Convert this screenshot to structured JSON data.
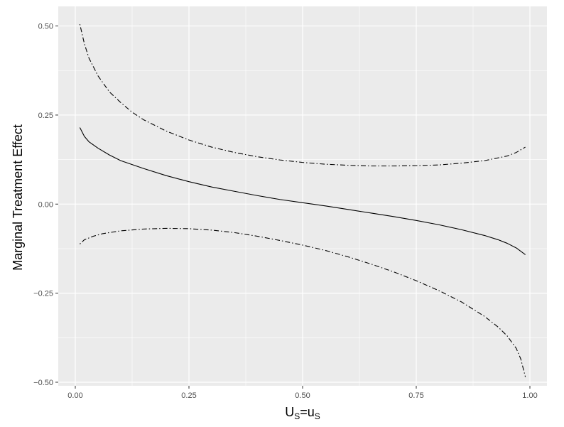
{
  "chart_data": {
    "type": "line",
    "title": "",
    "xlabel": "U_S=u_S",
    "xlabel_parts": {
      "main": "U",
      "sub": "S",
      "eq": "=u",
      "sub2": "S"
    },
    "ylabel": "Marginal Treatment Effect",
    "xlim": [
      -0.0375,
      1.0375
    ],
    "ylim": [
      -0.51,
      0.555
    ],
    "x_ticks": [
      0.0,
      0.25,
      0.5,
      0.75,
      1.0
    ],
    "x_tick_labels": [
      "0.00",
      "0.25",
      "0.50",
      "0.75",
      "1.00"
    ],
    "y_ticks": [
      -0.5,
      -0.25,
      0.0,
      0.25,
      0.5
    ],
    "y_tick_labels": [
      "−0.50",
      "−0.25",
      "0.00",
      "0.25",
      "0.50"
    ],
    "grid": true,
    "legend": "none",
    "background_color": "#ebebeb",
    "grid_color": "#ffffff",
    "series": [
      {
        "line_style": "solid",
        "x": [
          0.01,
          0.02,
          0.03,
          0.05,
          0.075,
          0.1,
          0.15,
          0.2,
          0.25,
          0.3,
          0.35,
          0.4,
          0.45,
          0.5,
          0.55,
          0.6,
          0.65,
          0.7,
          0.75,
          0.8,
          0.85,
          0.9,
          0.93,
          0.95,
          0.97,
          0.99
        ],
        "y": [
          0.215,
          0.19,
          0.175,
          0.157,
          0.138,
          0.122,
          0.1,
          0.08,
          0.063,
          0.048,
          0.036,
          0.024,
          0.013,
          0.004,
          -0.005,
          -0.015,
          -0.025,
          -0.035,
          -0.046,
          -0.058,
          -0.072,
          -0.088,
          -0.1,
          -0.11,
          -0.123,
          -0.142
        ]
      },
      {
        "line_style": "dotdash",
        "x": [
          0.01,
          0.02,
          0.03,
          0.05,
          0.075,
          0.1,
          0.125,
          0.15,
          0.2,
          0.25,
          0.3,
          0.35,
          0.4,
          0.45,
          0.5,
          0.55,
          0.6,
          0.65,
          0.7,
          0.75,
          0.8,
          0.85,
          0.9,
          0.95,
          0.97,
          0.99
        ],
        "y": [
          0.505,
          0.45,
          0.41,
          0.36,
          0.315,
          0.285,
          0.258,
          0.237,
          0.205,
          0.18,
          0.16,
          0.145,
          0.133,
          0.124,
          0.117,
          0.112,
          0.109,
          0.107,
          0.107,
          0.108,
          0.11,
          0.115,
          0.122,
          0.135,
          0.145,
          0.16
        ]
      },
      {
        "line_style": "dotdash",
        "x": [
          0.01,
          0.02,
          0.04,
          0.06,
          0.1,
          0.15,
          0.2,
          0.25,
          0.3,
          0.35,
          0.4,
          0.45,
          0.5,
          0.55,
          0.6,
          0.65,
          0.7,
          0.75,
          0.8,
          0.85,
          0.9,
          0.93,
          0.95,
          0.97,
          0.98,
          0.99
        ],
        "y": [
          -0.112,
          -0.1,
          -0.09,
          -0.083,
          -0.075,
          -0.07,
          -0.068,
          -0.069,
          -0.073,
          -0.08,
          -0.09,
          -0.102,
          -0.115,
          -0.13,
          -0.148,
          -0.168,
          -0.19,
          -0.215,
          -0.243,
          -0.275,
          -0.315,
          -0.345,
          -0.37,
          -0.405,
          -0.435,
          -0.485
        ]
      }
    ]
  }
}
